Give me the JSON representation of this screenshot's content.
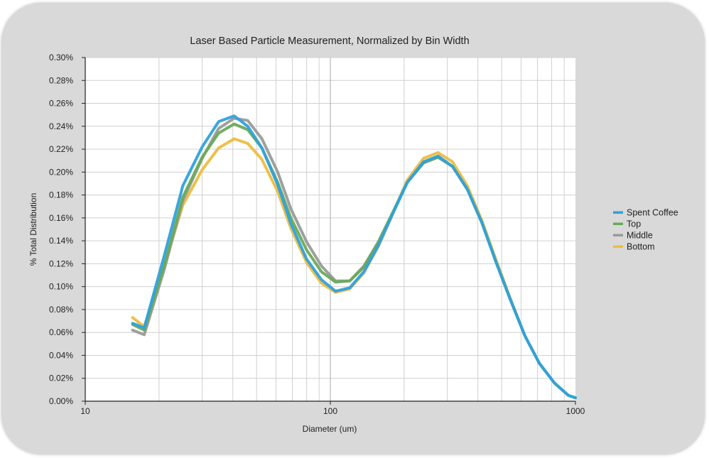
{
  "chart_data": {
    "type": "line",
    "title": "Laser Based Particle Measurement, Normalized by Bin Width",
    "xlabel": "Diameter (um)",
    "ylabel": "% Total Distribution",
    "x_scale": "log",
    "xlim": [
      10,
      1000
    ],
    "ylim": [
      0,
      0.3
    ],
    "x_tick_labels": [
      "10",
      "100",
      "1000"
    ],
    "x_tick_values": [
      10,
      100,
      1000
    ],
    "y_tick_values": [
      0,
      0.02,
      0.04,
      0.06,
      0.08,
      0.1,
      0.12,
      0.14,
      0.16,
      0.18,
      0.2,
      0.22,
      0.24,
      0.26,
      0.28,
      0.3
    ],
    "y_tick_labels": [
      "0.00%",
      "0.02%",
      "0.04%",
      "0.06%",
      "0.08%",
      "0.10%",
      "0.12%",
      "0.14%",
      "0.16%",
      "0.18%",
      "0.20%",
      "0.22%",
      "0.24%",
      "0.26%",
      "0.28%",
      "0.30%"
    ],
    "grid": true,
    "legend_position": "right",
    "x": [
      15.6,
      17.4,
      21.0,
      25.0,
      30.0,
      35.0,
      40.5,
      46.0,
      52.6,
      61.0,
      69.0,
      80.0,
      92.0,
      105.0,
      120.0,
      137.0,
      157.0,
      180.0,
      206.0,
      240.0,
      275.0,
      315.0,
      362.0,
      415.0,
      475.0,
      544.0,
      622.0,
      713.0,
      820.0,
      936.0,
      1000.0
    ],
    "series": [
      {
        "name": "Spent Coffee",
        "color": "#2ea1de",
        "values": [
          0.068,
          0.064,
          0.127,
          0.188,
          0.222,
          0.244,
          0.249,
          0.24,
          0.221,
          0.189,
          0.155,
          0.124,
          0.106,
          0.096,
          0.099,
          0.113,
          0.136,
          0.164,
          0.191,
          0.209,
          0.214,
          0.205,
          0.185,
          0.156,
          0.121,
          0.088,
          0.057,
          0.033,
          0.016,
          0.005,
          0.003
        ]
      },
      {
        "name": "Top",
        "color": "#6aaa58",
        "values": [
          0.067,
          0.062,
          0.118,
          0.178,
          0.213,
          0.234,
          0.242,
          0.237,
          0.221,
          0.191,
          0.16,
          0.132,
          0.113,
          0.104,
          0.105,
          0.117,
          0.139,
          0.165,
          0.191,
          0.208,
          0.213,
          0.205,
          0.185,
          0.156,
          0.121,
          0.088,
          0.057,
          0.033,
          0.016,
          0.005,
          0.003
        ]
      },
      {
        "name": "Middle",
        "color": "#999b99",
        "values": [
          0.062,
          0.058,
          0.115,
          0.175,
          0.212,
          0.238,
          0.247,
          0.245,
          0.229,
          0.2,
          0.168,
          0.139,
          0.118,
          0.105,
          0.105,
          0.118,
          0.139,
          0.165,
          0.191,
          0.208,
          0.213,
          0.205,
          0.185,
          0.156,
          0.121,
          0.088,
          0.057,
          0.033,
          0.016,
          0.005,
          0.003
        ]
      },
      {
        "name": "Bottom",
        "color": "#ecbd40",
        "values": [
          0.073,
          0.065,
          0.118,
          0.171,
          0.202,
          0.221,
          0.229,
          0.225,
          0.211,
          0.183,
          0.151,
          0.121,
          0.103,
          0.095,
          0.098,
          0.112,
          0.135,
          0.164,
          0.193,
          0.212,
          0.217,
          0.209,
          0.188,
          0.158,
          0.123,
          0.089,
          0.057,
          0.033,
          0.016,
          0.005,
          0.003
        ]
      }
    ]
  }
}
